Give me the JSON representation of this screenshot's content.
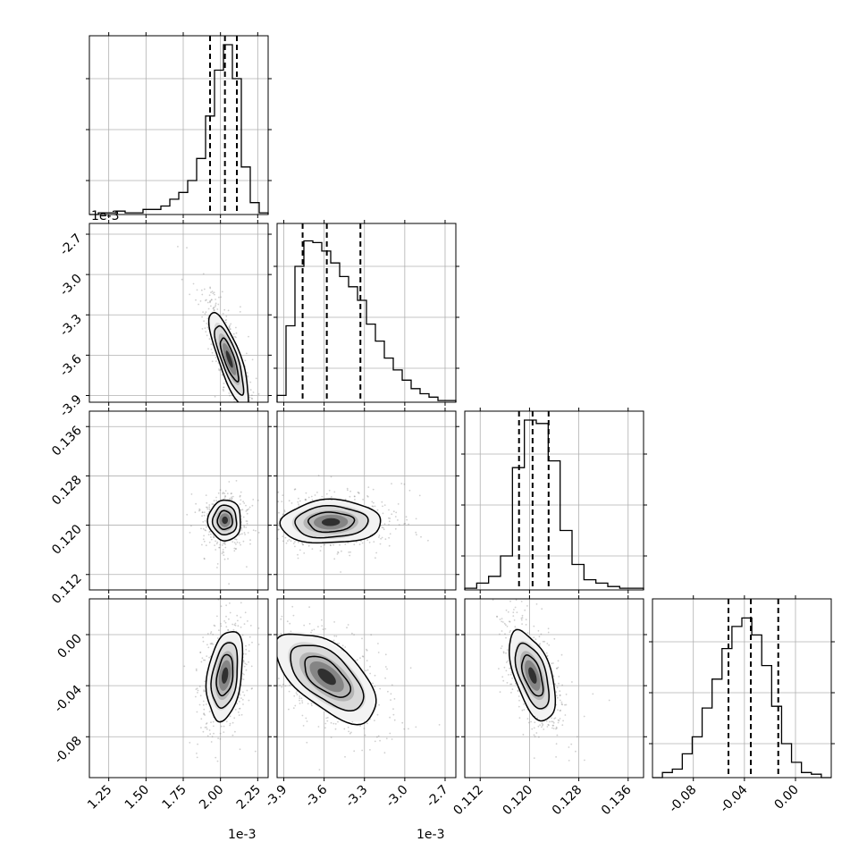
{
  "chart_data": {
    "type": "corner",
    "n_params": 4,
    "offset_text": [
      "1e-3",
      "1e-3",
      "1e-3"
    ],
    "params": [
      {
        "range": [
          1.12,
          2.32
        ],
        "xticks": [
          "1.25",
          "1.50",
          "1.75",
          "2.00",
          "2.25"
        ],
        "tick_values": [
          1.25,
          1.5,
          1.75,
          2.0,
          2.25
        ],
        "quantiles": [
          1.93,
          2.03,
          2.11
        ],
        "hist": [
          0.0,
          0.01,
          0.01,
          0.02,
          0.01,
          0.01,
          0.03,
          0.03,
          0.05,
          0.09,
          0.13,
          0.2,
          0.33,
          0.58,
          0.85,
          1.0,
          0.8,
          0.28,
          0.07,
          0.01
        ]
      },
      {
        "range": [
          -3.95,
          -2.62
        ],
        "xticks": [
          "-3.9",
          "-3.6",
          "-3.3",
          "-3.0",
          "-2.7"
        ],
        "tick_values": [
          -3.9,
          -3.6,
          -3.3,
          -3.0,
          -2.7
        ],
        "yticks": [
          "-2.7",
          "-3.0",
          "-3.3",
          "-3.6",
          "-3.9"
        ],
        "quantiles": [
          -3.76,
          -3.58,
          -3.33
        ],
        "hist": [
          0.04,
          0.45,
          0.8,
          0.95,
          0.94,
          0.89,
          0.82,
          0.74,
          0.68,
          0.6,
          0.46,
          0.36,
          0.26,
          0.19,
          0.13,
          0.08,
          0.05,
          0.03,
          0.01,
          0.01
        ]
      },
      {
        "range": [
          0.1095,
          0.1385
        ],
        "xticks": [
          "0.112",
          "0.120",
          "0.128",
          "0.136"
        ],
        "tick_values": [
          0.112,
          0.12,
          0.128,
          0.136
        ],
        "yticks": [
          "0.136",
          "0.128",
          "0.120",
          "0.112"
        ],
        "quantiles": [
          0.1183,
          0.1205,
          0.1231
        ],
        "hist": [
          0.01,
          0.04,
          0.08,
          0.2,
          0.72,
          1.0,
          0.98,
          0.76,
          0.35,
          0.15,
          0.06,
          0.04,
          0.02,
          0.01,
          0.01
        ]
      },
      {
        "range": [
          -0.112,
          0.028
        ],
        "xticks": [
          "-0.08",
          "-0.04",
          "0.00"
        ],
        "tick_values": [
          -0.08,
          -0.04,
          0.0
        ],
        "yticks": [
          "0.00",
          "-0.04",
          "-0.08"
        ],
        "quantiles": [
          -0.0525,
          -0.035,
          -0.0135
        ],
        "hist": [
          0.0,
          0.03,
          0.05,
          0.14,
          0.24,
          0.41,
          0.58,
          0.76,
          0.89,
          0.94,
          0.84,
          0.66,
          0.42,
          0.2,
          0.09,
          0.03,
          0.02,
          0.0
        ]
      }
    ],
    "pairs": [
      {
        "row": 1,
        "col": 0,
        "center": [
          2.06,
          -3.63
        ],
        "sd": [
          0.06,
          0.16
        ],
        "rho": -0.8
      },
      {
        "row": 2,
        "col": 0,
        "center": [
          2.03,
          0.1208
        ],
        "sd": [
          0.05,
          0.0015
        ],
        "rho": 0.0
      },
      {
        "row": 2,
        "col": 1,
        "center": [
          -3.55,
          0.1205
        ],
        "sd": [
          0.17,
          0.0016
        ],
        "rho": 0.05
      },
      {
        "row": 3,
        "col": 0,
        "center": [
          2.03,
          -0.032
        ],
        "sd": [
          0.055,
          0.016
        ],
        "rho": 0.3
      },
      {
        "row": 3,
        "col": 1,
        "center": [
          -3.58,
          -0.033
        ],
        "sd": [
          0.17,
          0.016
        ],
        "rho": -0.6
      },
      {
        "row": 3,
        "col": 2,
        "center": [
          0.1205,
          -0.032
        ],
        "sd": [
          0.0017,
          0.016
        ],
        "rho": -0.55
      }
    ],
    "grid": true
  }
}
